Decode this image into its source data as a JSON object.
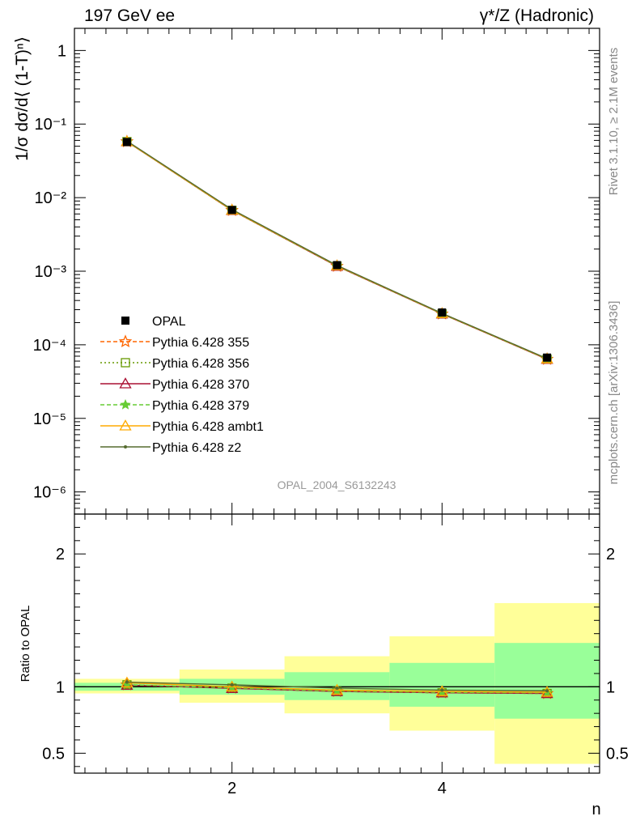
{
  "header": {
    "left": "197 GeV ee",
    "right": "γ*/Z (Hadronic)"
  },
  "side": {
    "rivet": "Rivet 3.1.10, ≥ 2.1M events",
    "mcplots": "mcplots.cern.ch [arXiv:1306.3436]"
  },
  "watermark": "OPAL_2004_S6132243",
  "colors": {
    "band_inner": "#99ff99",
    "band_outer": "#ffff99",
    "data": "#000000"
  },
  "chart_data": [
    {
      "type": "line",
      "ylabel": "1/σ dσ/d⟨ (1-T)ⁿ⟩",
      "yscale": "log",
      "ylim": [
        5e-07,
        2.0
      ],
      "xlim": [
        0.5,
        5.5
      ],
      "yticks": [
        {
          "v": 1,
          "label": "1"
        },
        {
          "v": 0.1,
          "label": "10⁻¹"
        },
        {
          "v": 0.01,
          "label": "10⁻²"
        },
        {
          "v": 0.001,
          "label": "10⁻³"
        },
        {
          "v": 0.0001,
          "label": "10⁻⁴"
        },
        {
          "v": 1e-05,
          "label": "10⁻⁵"
        },
        {
          "v": 1e-06,
          "label": "10⁻⁶"
        }
      ],
      "x": [
        1,
        2,
        3,
        4,
        5
      ],
      "data_series": {
        "name": "OPAL",
        "values": [
          0.057,
          0.0068,
          0.00121,
          0.000275,
          6.7e-05
        ]
      },
      "series": [
        {
          "name": "Pythia 6.428 355",
          "color": "#ff6600",
          "dash": "5,3",
          "marker": "star-open",
          "values": [
            0.0577,
            0.00671,
            0.00117,
            0.000263,
            6.37e-05
          ]
        },
        {
          "name": "Pythia 6.428 356",
          "color": "#669900",
          "dash": "2,3",
          "marker": "square-open",
          "values": [
            0.0577,
            0.00671,
            0.00117,
            0.000263,
            6.37e-05
          ]
        },
        {
          "name": "Pythia 6.428 370",
          "color": "#aa1133",
          "dash": "",
          "marker": "triangle-open",
          "values": [
            0.0576,
            0.00672,
            0.00117,
            0.000263,
            6.37e-05
          ]
        },
        {
          "name": "Pythia 6.428 379",
          "color": "#66cc33",
          "dash": "5,3",
          "marker": "star-filled",
          "values": [
            0.0577,
            0.00673,
            0.00118,
            0.000264,
            6.4e-05
          ]
        },
        {
          "name": "Pythia 6.428 ambt1",
          "color": "#ffaa00",
          "dash": "",
          "marker": "triangle-open",
          "values": [
            0.0579,
            0.00678,
            0.00119,
            0.000266,
            6.45e-05
          ]
        },
        {
          "name": "Pythia 6.428 z2",
          "color": "#556b2f",
          "dash": "",
          "marker": "dot",
          "values": [
            0.0588,
            0.0069,
            0.0012,
            0.000268,
            6.5e-05
          ]
        }
      ]
    },
    {
      "type": "line",
      "xlabel": "n",
      "ylabel": "Ratio to OPAL",
      "ylim": [
        0.35,
        2.3
      ],
      "yticks": [
        {
          "v": 0.5,
          "label": "0.5"
        },
        {
          "v": 1,
          "label": "1"
        },
        {
          "v": 2,
          "label": "2"
        }
      ],
      "xticks": [
        {
          "v": 2,
          "label": "2"
        },
        {
          "v": 4,
          "label": "4"
        }
      ],
      "bands": [
        {
          "x0": 0.5,
          "x1": 1.5,
          "inner": [
            0.97,
            1.03
          ],
          "outer": [
            0.95,
            1.06
          ]
        },
        {
          "x0": 1.5,
          "x1": 2.5,
          "inner": [
            0.94,
            1.06
          ],
          "outer": [
            0.88,
            1.13
          ]
        },
        {
          "x0": 2.5,
          "x1": 3.5,
          "inner": [
            0.9,
            1.11
          ],
          "outer": [
            0.8,
            1.23
          ]
        },
        {
          "x0": 3.5,
          "x1": 4.5,
          "inner": [
            0.85,
            1.18
          ],
          "outer": [
            0.67,
            1.38
          ]
        },
        {
          "x0": 4.5,
          "x1": 5.5,
          "inner": [
            0.76,
            1.33
          ],
          "outer": [
            0.42,
            1.63
          ]
        }
      ],
      "x": [
        1,
        2,
        3,
        4,
        5
      ],
      "series": [
        {
          "name": "Pythia 6.428 355",
          "values": [
            1.015,
            0.99,
            0.965,
            0.955,
            0.95
          ]
        },
        {
          "name": "Pythia 6.428 356",
          "values": [
            1.015,
            0.99,
            0.965,
            0.955,
            0.95
          ]
        },
        {
          "name": "Pythia 6.428 370",
          "values": [
            1.012,
            0.988,
            0.965,
            0.955,
            0.95
          ]
        },
        {
          "name": "Pythia 6.428 379",
          "values": [
            1.015,
            0.992,
            0.968,
            0.958,
            0.955
          ]
        },
        {
          "name": "Pythia 6.428 ambt1",
          "values": [
            1.03,
            1.0,
            0.975,
            0.965,
            0.96
          ]
        },
        {
          "name": "Pythia 6.428 z2",
          "values": [
            1.035,
            1.015,
            0.99,
            0.975,
            0.97
          ]
        }
      ]
    }
  ]
}
